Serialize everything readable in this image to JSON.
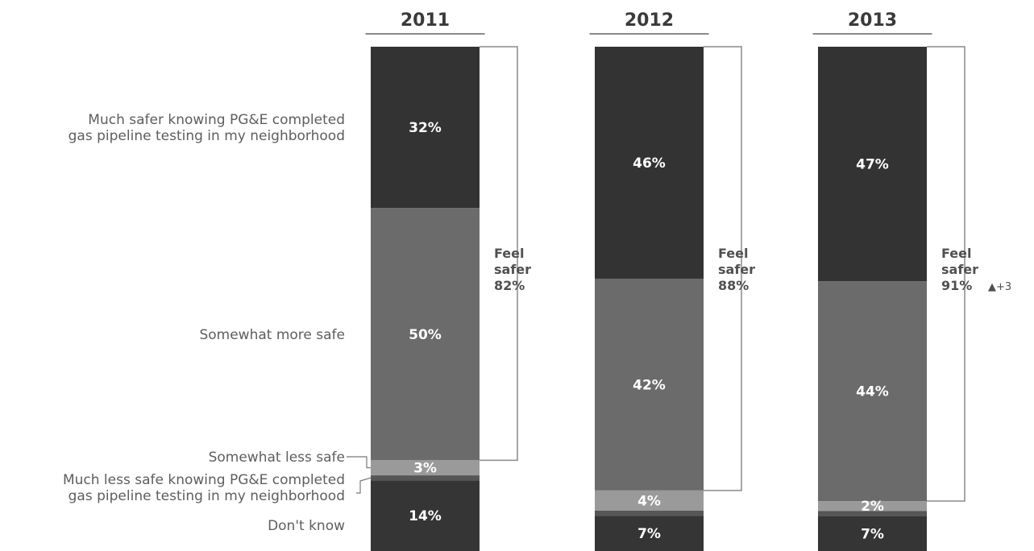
{
  "chart_data": {
    "type": "bar",
    "stacked": true,
    "normalized_to_100": true,
    "categories": [
      "2011",
      "2012",
      "2013"
    ],
    "series": [
      {
        "name": "Much safer knowing PG&E completed gas pipeline testing in my neighborhood",
        "color": "#333333",
        "values": [
          32,
          46,
          47
        ]
      },
      {
        "name": "Somewhat more safe",
        "color": "#6b6b6b",
        "values": [
          50,
          42,
          44
        ]
      },
      {
        "name": "Somewhat less safe",
        "color": "#9a9a9a",
        "values": [
          3,
          4,
          2
        ]
      },
      {
        "name": "Much less safe knowing PG&E completed gas pipeline testing in my neighborhood",
        "color": "#565656",
        "values": [
          1,
          1,
          1
        ]
      },
      {
        "name": "Don't know",
        "color": "#353535",
        "values": [
          14,
          7,
          7
        ]
      }
    ],
    "value_labels": [
      [
        "32%",
        "50%",
        "3%",
        "",
        "14%"
      ],
      [
        "46%",
        "42%",
        "4%",
        "",
        "7%"
      ],
      [
        "47%",
        "44%",
        "2%",
        "",
        "7%"
      ]
    ],
    "category_labels": [
      [
        "Much safer knowing PG&E completed",
        "gas pipeline testing in my neighborhood"
      ],
      [
        "Somewhat more safe"
      ],
      [
        "Somewhat less safe"
      ],
      [
        "Much less safe knowing PG&E completed",
        "gas pipeline testing in my neighborhood"
      ],
      [
        "Don't know"
      ]
    ],
    "brackets": [
      {
        "line1": "Feel",
        "line2": "safer",
        "line3": "82%",
        "change": ""
      },
      {
        "line1": "Feel",
        "line2": "safer",
        "line3": "88%",
        "change": ""
      },
      {
        "line1": "Feel",
        "line2": "safer",
        "line3": "91%",
        "change": "▲+3"
      }
    ],
    "xlabel": "",
    "ylabel": ""
  }
}
